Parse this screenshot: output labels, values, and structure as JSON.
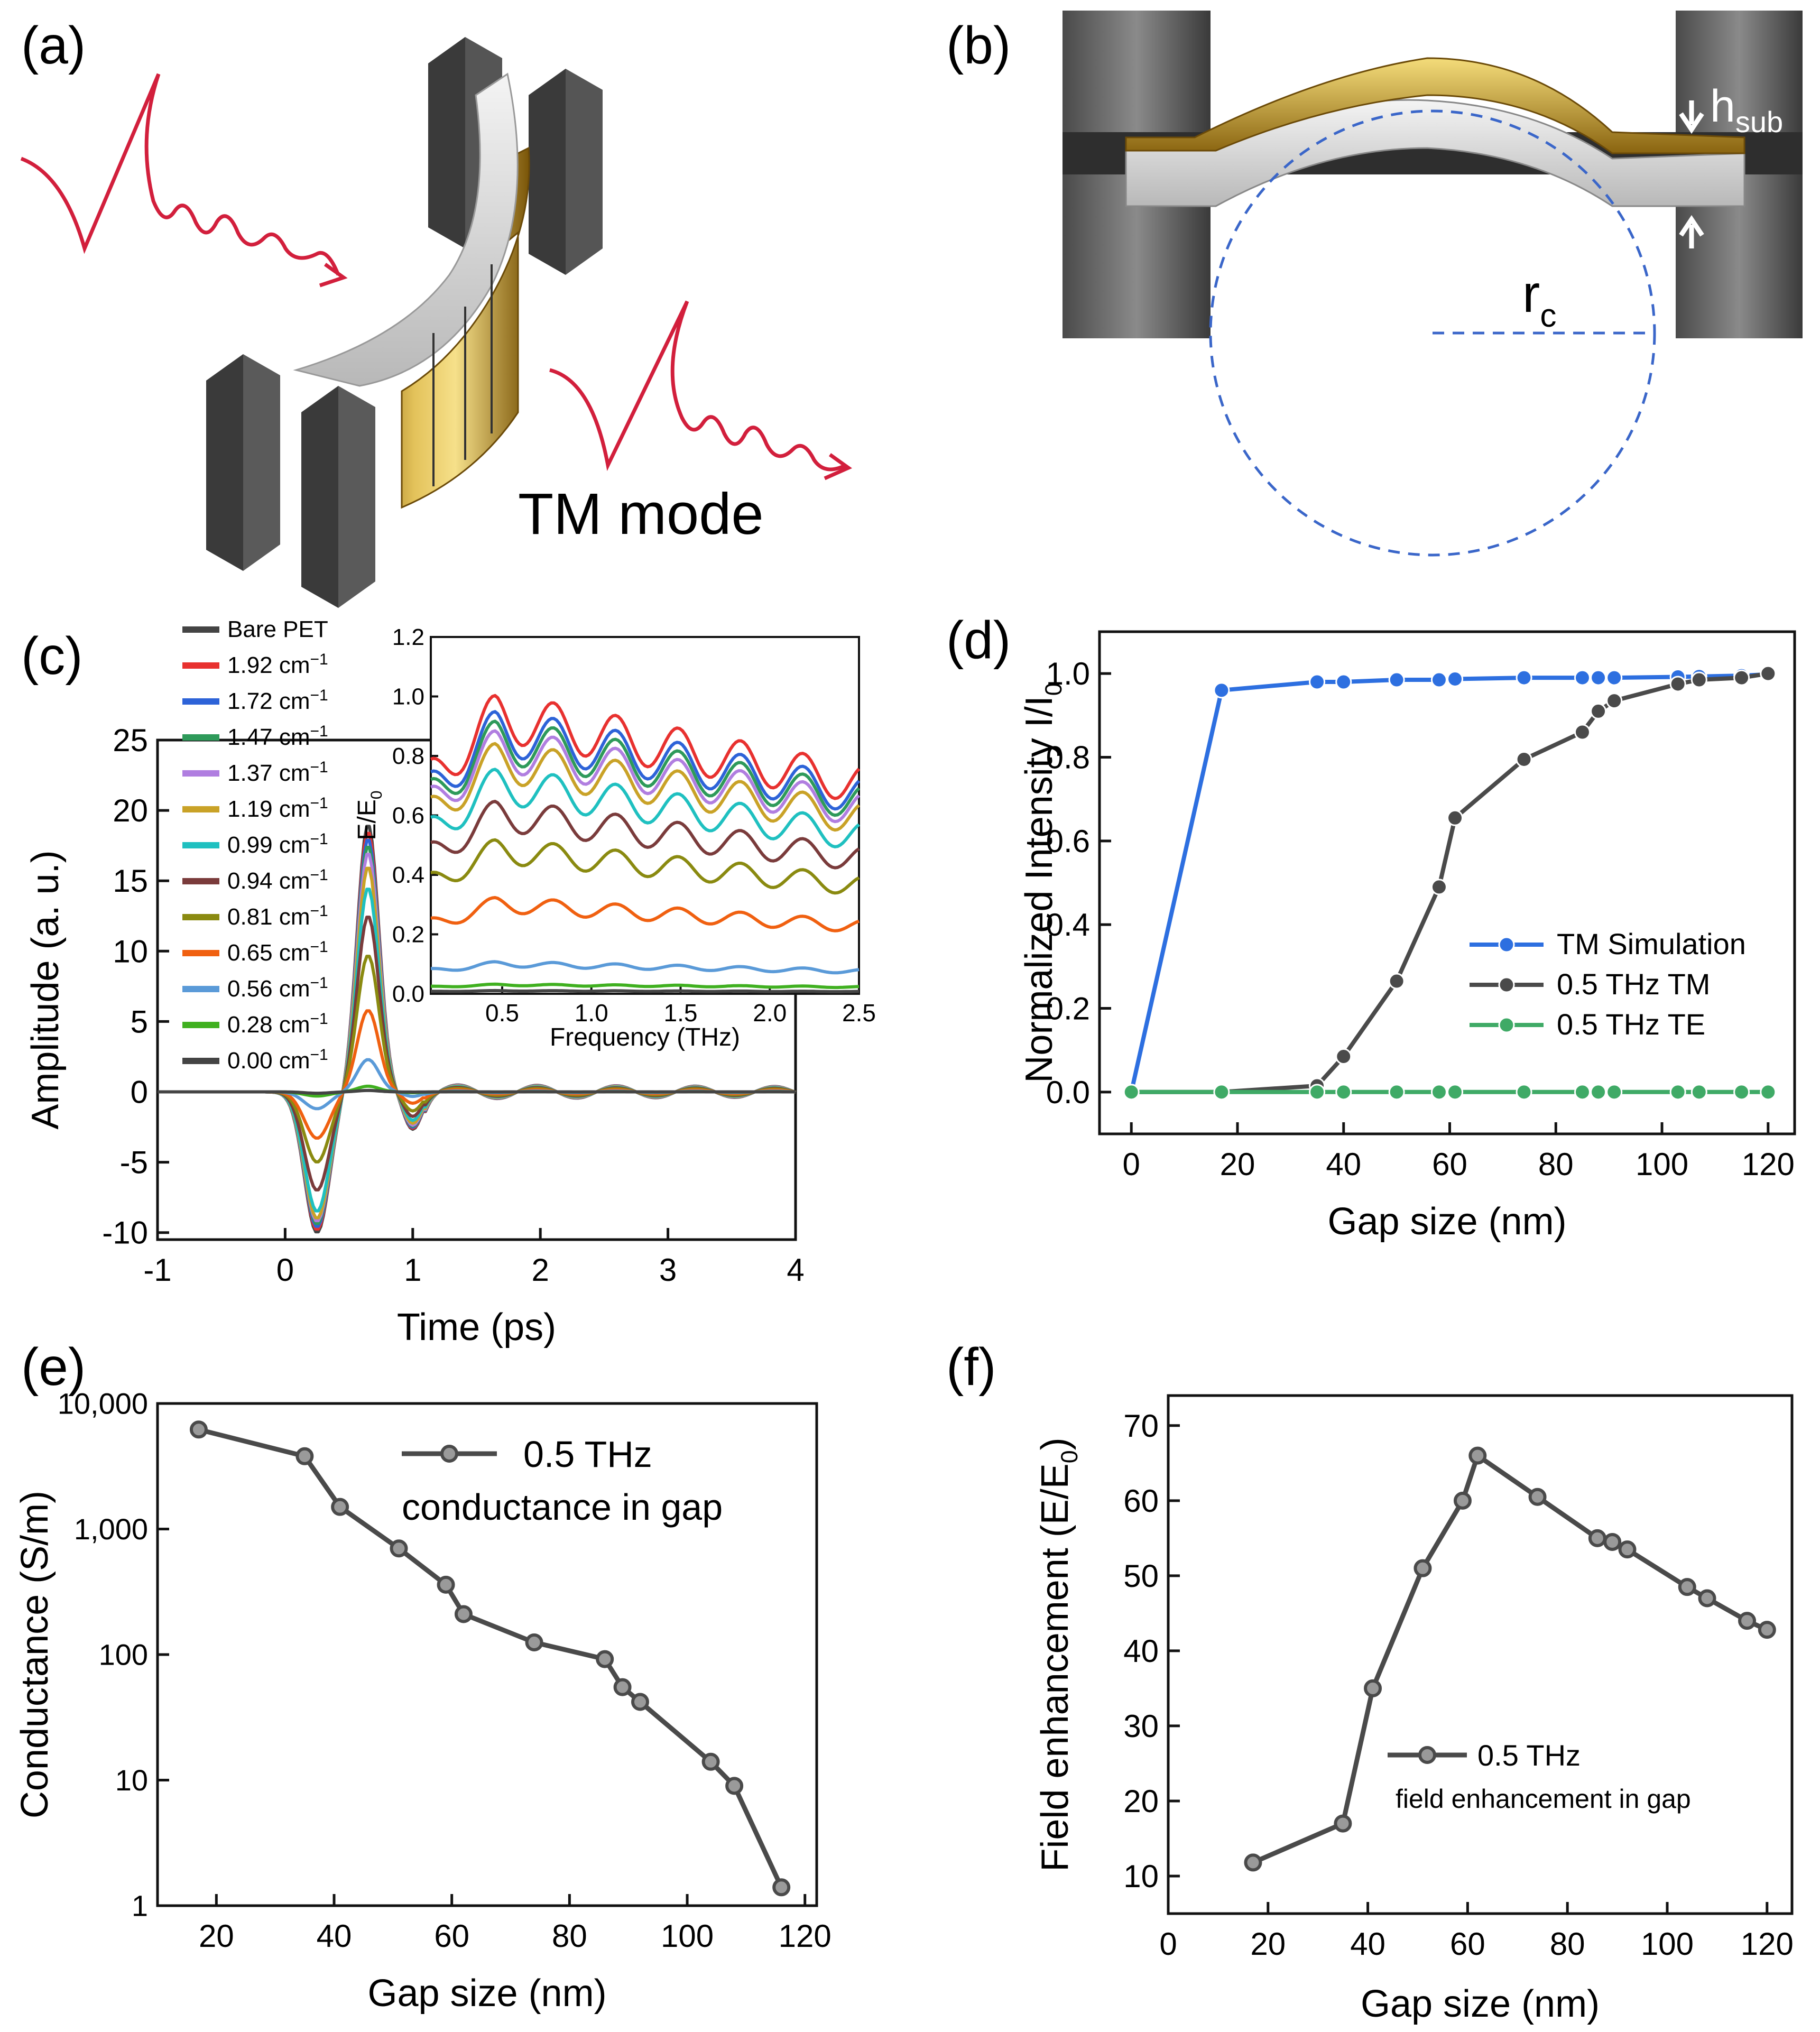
{
  "panels": {
    "a": {
      "label": "(a)",
      "caption": "TM mode"
    },
    "b": {
      "label": "(b)",
      "h_label": "h",
      "h_sub": "sub",
      "r_label": "r",
      "r_sub": "c"
    },
    "c": {
      "label": "(c)"
    },
    "d": {
      "label": "(d)"
    },
    "e": {
      "label": "(e)"
    },
    "f": {
      "label": "(f)"
    }
  },
  "colors": {
    "gold": "#c9a227",
    "metal": "#6b6b6b",
    "wave": "#d21f3c",
    "circle": "#3a66c9",
    "axis": "#111111"
  },
  "chart_data": [
    {
      "id": "c",
      "type": "line",
      "title": "",
      "xlabel": "Time (ps)",
      "ylabel": "Amplitude (a. u.)",
      "xlim": [
        -1,
        4
      ],
      "ylim": [
        -10.5,
        25
      ],
      "xticks": [
        "-1",
        "0",
        "1",
        "2",
        "3",
        "4"
      ],
      "yticks": [
        "-10",
        "-5",
        "0",
        "5",
        "10",
        "15",
        "20",
        "25"
      ],
      "legend_title": "Bare PET",
      "series": [
        {
          "name": "Bare PET",
          "unit": "",
          "color": "#444444",
          "peak": 19.0,
          "trough": -10.0
        },
        {
          "name": "1.92",
          "unit": "cm⁻¹",
          "color": "#e8312f",
          "peak": 18.5,
          "trough": -9.8
        },
        {
          "name": "1.72",
          "unit": "cm⁻¹",
          "color": "#2d63d8",
          "peak": 18.0,
          "trough": -9.6
        },
        {
          "name": "1.47",
          "unit": "cm⁻¹",
          "color": "#2e9a5a",
          "peak": 17.5,
          "trough": -9.4
        },
        {
          "name": "1.37",
          "unit": "cm⁻¹",
          "color": "#b07ee0",
          "peak": 17.0,
          "trough": -9.2
        },
        {
          "name": "1.19",
          "unit": "cm⁻¹",
          "color": "#c9a227",
          "peak": 16.0,
          "trough": -9.0
        },
        {
          "name": "0.99",
          "unit": "cm⁻¹",
          "color": "#1fc0c0",
          "peak": 14.5,
          "trough": -8.5
        },
        {
          "name": "0.94",
          "unit": "cm⁻¹",
          "color": "#7a3b3b",
          "peak": 12.5,
          "trough": -7.0
        },
        {
          "name": "0.81",
          "unit": "cm⁻¹",
          "color": "#8a8a10",
          "peak": 9.7,
          "trough": -5.0
        },
        {
          "name": "0.65",
          "unit": "cm⁻¹",
          "color": "#f06010",
          "peak": 5.8,
          "trough": -3.3
        },
        {
          "name": "0.56",
          "unit": "cm⁻¹",
          "color": "#5a9ad8",
          "peak": 2.3,
          "trough": -1.2
        },
        {
          "name": "0.28",
          "unit": "cm⁻¹",
          "color": "#40b020",
          "peak": 0.4,
          "trough": -0.3
        },
        {
          "name": "0.00",
          "unit": "cm⁻¹",
          "color": "#444444",
          "peak": 0.1,
          "trough": -0.1
        }
      ],
      "inset": {
        "xlabel": "Frequency (THz)",
        "ylabel": "E/E",
        "ylabel_sub": "0",
        "xlim": [
          0.1,
          2.5
        ],
        "ylim": [
          0,
          1.2
        ],
        "xticks": [
          "0.5",
          "1.0",
          "1.5",
          "2.0",
          "2.5"
        ],
        "yticks": [
          "0.0",
          "0.2",
          "0.4",
          "0.6",
          "0.8",
          "1.0",
          "1.2"
        ],
        "levels": [
          0.93,
          0.88,
          0.85,
          0.82,
          0.78,
          0.7,
          0.6,
          0.48,
          0.3,
          0.1,
          0.03,
          0.01
        ]
      }
    },
    {
      "id": "d",
      "type": "line",
      "xlabel": "Gap size (nm)",
      "ylabel": "Normalized Intensity I/I",
      "ylabel_sub": "0",
      "xlim": [
        -6,
        125
      ],
      "ylim": [
        -0.1,
        1.1
      ],
      "xticks": [
        0,
        20,
        40,
        60,
        80,
        100,
        120
      ],
      "yticks": [
        "0.0",
        "0.2",
        "0.4",
        "0.6",
        "0.8",
        "1.0"
      ],
      "legend": "bottom-right",
      "series": [
        {
          "name": "TM Simulation",
          "color": "#2d6fe0",
          "x": [
            0,
            17,
            35,
            40,
            50,
            58,
            61,
            74,
            85,
            88,
            91,
            103,
            107,
            115,
            120
          ],
          "y": [
            0.0,
            0.96,
            0.98,
            0.98,
            0.985,
            0.985,
            0.987,
            0.99,
            0.99,
            0.99,
            0.99,
            0.992,
            0.993,
            0.995,
            0.998
          ]
        },
        {
          "name": "0.5 THz TM",
          "color": "#4a4a4a",
          "x": [
            0,
            17,
            35,
            40,
            50,
            58,
            61,
            74,
            85,
            88,
            91,
            103,
            107,
            115,
            120
          ],
          "y": [
            0.0,
            0.0,
            0.015,
            0.085,
            0.265,
            0.49,
            0.655,
            0.795,
            0.86,
            0.91,
            0.935,
            0.975,
            0.985,
            0.99,
            1.0
          ]
        },
        {
          "name": "0.5 THz TE",
          "color": "#3faa66",
          "x": [
            0,
            17,
            35,
            40,
            50,
            58,
            61,
            74,
            85,
            88,
            91,
            103,
            107,
            115,
            120
          ],
          "y": [
            0,
            0,
            0,
            0,
            0,
            0,
            0,
            0,
            0,
            0,
            0,
            0,
            0,
            0,
            0
          ]
        }
      ]
    },
    {
      "id": "e",
      "type": "line",
      "scale": "log",
      "xlabel": "Gap size (nm)",
      "ylabel": "Conductance (S/m)",
      "xlim": [
        10,
        122
      ],
      "ylim": [
        1,
        10000
      ],
      "xticks": [
        20,
        40,
        60,
        80,
        100,
        120
      ],
      "yticks": [
        {
          "value": 1,
          "label": "1"
        },
        {
          "value": 10,
          "label": "10"
        },
        {
          "value": 100,
          "label": "100"
        },
        {
          "value": 1000,
          "label": "1,000"
        },
        {
          "value": 10000,
          "label": "10,000"
        }
      ],
      "legend_lines": [
        "0.5 THz",
        "conductance in gap"
      ],
      "series": [
        {
          "name": "0.5 THz conductance in gap",
          "color": "#4a4a4a",
          "x": [
            17,
            35,
            41,
            51,
            59,
            62,
            74,
            86,
            89,
            92,
            104,
            108,
            116
          ],
          "y": [
            6200,
            3800,
            1500,
            700,
            360,
            210,
            125,
            92,
            55,
            42,
            14,
            9,
            1.4
          ]
        }
      ]
    },
    {
      "id": "f",
      "type": "line",
      "xlabel": "Gap size (nm)",
      "ylabel": "Field enhancement (E/E",
      "ylabel_sub": "0",
      "ylabel_end": ")",
      "xlim": [
        0,
        125
      ],
      "ylim": [
        5,
        74
      ],
      "xticks": [
        0,
        20,
        40,
        60,
        80,
        100,
        120
      ],
      "yticks": [
        10,
        20,
        30,
        40,
        50,
        60,
        70
      ],
      "legend_lines": [
        "0.5 THz",
        "field enhancement in gap"
      ],
      "series": [
        {
          "name": "0.5 THz field enhancement in gap",
          "color": "#4a4a4a",
          "x": [
            17,
            35,
            41,
            51,
            59,
            62,
            74,
            86,
            89,
            92,
            104,
            108,
            116,
            120
          ],
          "y": [
            11.8,
            17,
            35,
            51,
            60,
            66,
            60.5,
            55,
            54.5,
            53.5,
            48.5,
            47,
            44,
            42.8
          ]
        }
      ]
    }
  ]
}
